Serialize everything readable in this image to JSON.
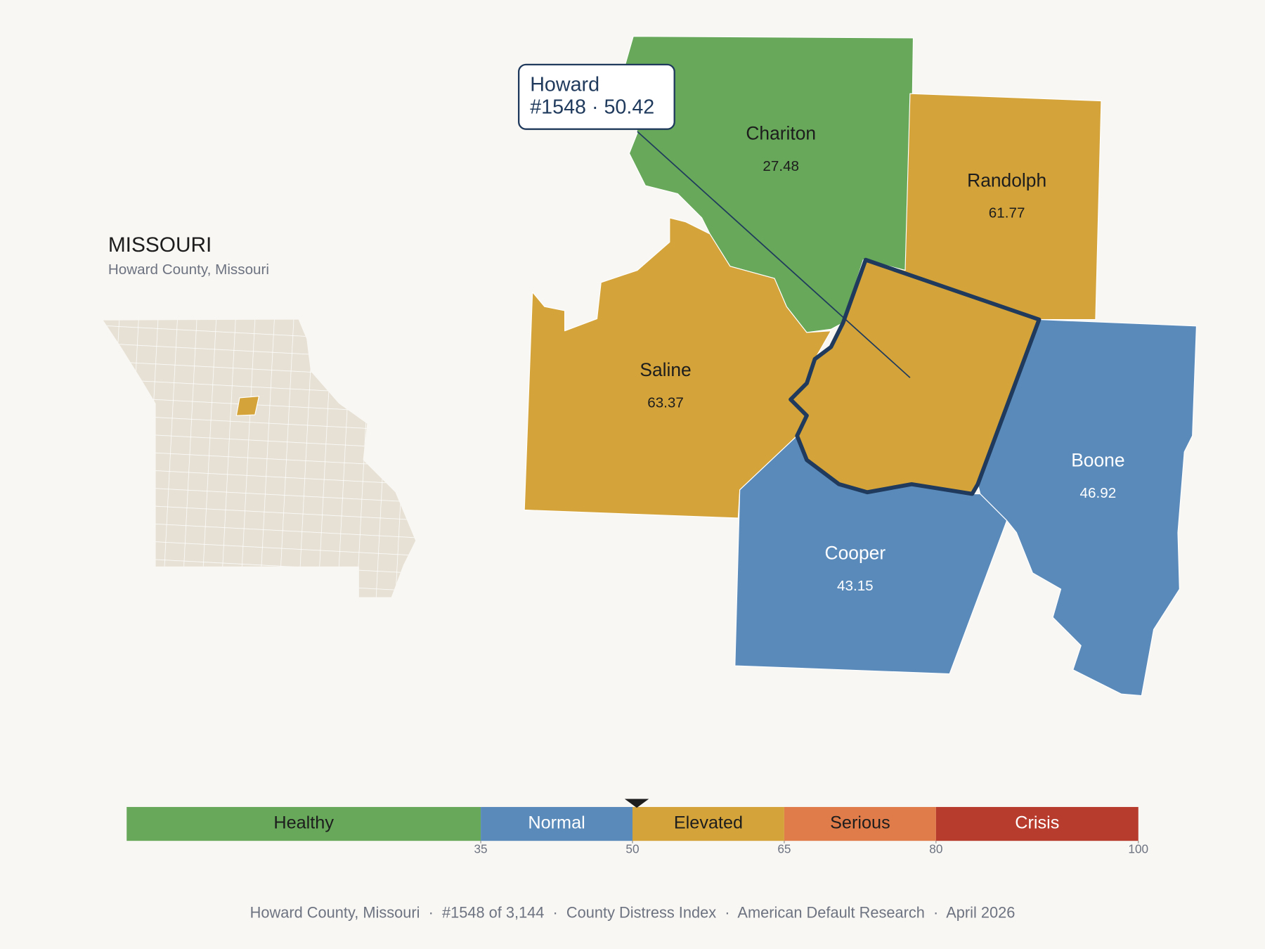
{
  "title": "MISSOURI",
  "subtitle": "Howard County, Missouri",
  "counties": [
    {
      "name": "Chariton",
      "value": 27.48,
      "color": "#67a85a"
    },
    {
      "name": "Randolph",
      "value": 61.77,
      "color": "#d4a43a"
    },
    {
      "name": "Saline",
      "value": 63.37,
      "color": "#d4a43a"
    },
    {
      "name": "Cooper",
      "value": 43.15,
      "color": "#5a8aba"
    },
    {
      "name": "Boone",
      "value": 46.92,
      "color": "#5a8aba"
    }
  ],
  "selected": {
    "name": "Howard",
    "value": 50.42,
    "value_label": "#1548 · 50.42",
    "color": "#d4a43a"
  },
  "legend": {
    "range": [
      0,
      100
    ],
    "ticks": [
      35,
      50,
      65,
      80,
      100
    ],
    "bands": [
      {
        "label": "Healthy",
        "color": "#67a85a"
      },
      {
        "label": "Normal",
        "color": "#5a8aba"
      },
      {
        "label": "Elevated",
        "color": "#d4a43a"
      },
      {
        "label": "Serious",
        "color": "#e07b4a"
      },
      {
        "label": "Crisis",
        "color": "#b83c2d"
      }
    ]
  },
  "footer": "Howard County, Missouri  ·  #1548 of 3,144  ·  County Distress Index  ·  American Default Research  ·  April 2026"
}
